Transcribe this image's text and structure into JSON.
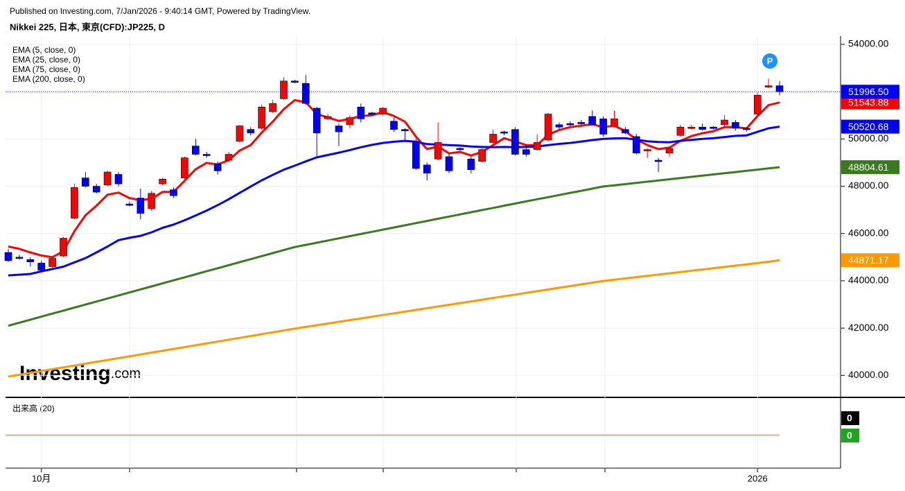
{
  "header": {
    "published": "Published on Investing.com, 7/Jan/2026 - 9:40:14 GMT, Powered by TradingView.",
    "symbol": "Nikkei 225, 日本, 東京(CFD):JP225, D"
  },
  "chart_data": {
    "type": "candlestick",
    "watermark": [
      "Investing",
      ".com"
    ],
    "marker": "P",
    "categories": [
      null,
      null,
      null,
      "10月",
      null,
      null,
      null,
      null,
      null,
      null,
      null,
      null,
      null,
      null,
      null,
      null,
      null,
      null,
      null,
      null,
      null,
      null,
      null,
      null,
      null,
      null,
      null,
      null,
      null,
      null,
      null,
      null,
      null,
      null,
      null,
      null,
      null,
      null,
      null,
      null,
      null,
      null,
      null,
      null,
      null,
      null,
      null,
      null,
      null,
      null,
      null,
      null,
      null,
      null,
      null,
      null,
      null,
      null,
      null,
      null,
      null,
      null,
      null,
      null,
      null,
      null,
      null,
      null,
      "2026",
      null,
      null
    ],
    "ylim": [
      39100,
      54350
    ],
    "yticks": [
      {
        "value": 40000,
        "label": "40000.00"
      },
      {
        "value": 42000,
        "label": "42000.00"
      },
      {
        "value": 44000,
        "label": "44000.00"
      },
      {
        "value": 46000,
        "label": "46000.00"
      },
      {
        "value": 48000,
        "label": "48000.00"
      },
      {
        "value": 50000,
        "label": "50000.00"
      },
      {
        "value": 52000,
        "label": "52000.00"
      },
      {
        "value": 54000,
        "label": "54000.00"
      }
    ],
    "grid": true,
    "candles": {
      "up_color": "#ff0000",
      "down_color": "#0000ff",
      "price_label": "51996.50",
      "open": [
        45200,
        45000,
        44900,
        44750,
        44600,
        45050,
        46650,
        48350,
        48000,
        48050,
        48500,
        47250,
        47500,
        47050,
        48100,
        47850,
        48350,
        49700,
        49350,
        48950,
        49100,
        49900,
        50400,
        50450,
        51150,
        51700,
        52450,
        52350,
        51300,
        50850,
        50550,
        50600,
        51350,
        51100,
        51050,
        50750,
        50400,
        49900,
        48900,
        49150,
        49250,
        49600,
        49150,
        49050,
        49850,
        50300,
        50400,
        49550,
        49550,
        49950,
        50600,
        50650,
        50700,
        50950,
        50850,
        50550,
        50400,
        50100,
        49500,
        49100,
        49400,
        50150,
        50450,
        50500,
        50500,
        50600,
        50700,
        50450,
        51050,
        52200,
        52250
      ],
      "high": [
        45350,
        45100,
        45000,
        44850,
        45000,
        45850,
        48100,
        48600,
        48100,
        48650,
        48600,
        47350,
        47900,
        47800,
        48350,
        47950,
        49250,
        50000,
        49450,
        49050,
        49450,
        50600,
        50500,
        51450,
        51650,
        52600,
        52500,
        52700,
        51350,
        51050,
        50650,
        51000,
        51500,
        51150,
        51350,
        50900,
        50450,
        50000,
        49000,
        50700,
        49350,
        49650,
        49250,
        49650,
        50400,
        50350,
        50500,
        49650,
        50200,
        51100,
        50700,
        50750,
        50800,
        51200,
        50950,
        51200,
        50500,
        50200,
        49600,
        49200,
        49700,
        50600,
        50600,
        50650,
        50550,
        51000,
        50800,
        50500,
        51950,
        52550,
        52450
      ],
      "low": [
        44800,
        44900,
        44600,
        44350,
        44550,
        45000,
        46600,
        47950,
        47700,
        48000,
        48000,
        47150,
        46600,
        46950,
        48050,
        47500,
        48300,
        49300,
        49200,
        48500,
        49050,
        49850,
        50150,
        50400,
        51100,
        51650,
        52350,
        51450,
        49200,
        50800,
        49700,
        50450,
        50700,
        51000,
        51000,
        50300,
        49900,
        48700,
        48250,
        49100,
        48550,
        49500,
        48550,
        49000,
        49800,
        50150,
        49300,
        49250,
        49500,
        49900,
        50400,
        50550,
        50600,
        50550,
        50100,
        50500,
        50200,
        49350,
        49200,
        48600,
        49250,
        50100,
        50400,
        50350,
        50400,
        50550,
        50350,
        50300,
        51000,
        52150,
        51850
      ],
      "close": [
        44850,
        44950,
        44800,
        44450,
        44950,
        45800,
        47950,
        48000,
        47750,
        48600,
        48100,
        47200,
        46850,
        47700,
        48300,
        47600,
        49200,
        49350,
        49300,
        48650,
        49350,
        50550,
        50250,
        51350,
        51500,
        52450,
        52400,
        51500,
        50250,
        50950,
        50300,
        50900,
        50850,
        51050,
        51300,
        50400,
        50350,
        48750,
        48550,
        49850,
        48650,
        49550,
        48700,
        49550,
        50200,
        50250,
        49350,
        49350,
        49850,
        51050,
        50500,
        50600,
        50650,
        50600,
        50200,
        50850,
        50250,
        49400,
        49550,
        49050,
        49600,
        50500,
        50500,
        50400,
        50450,
        50800,
        50450,
        50400,
        51850,
        52250,
        51996.5
      ]
    },
    "series": [
      {
        "name": "EMA (5, close, 0)",
        "color": "#ff0000",
        "price_label": "51543.88",
        "values": [
          45450,
          45350,
          45200,
          45070,
          45000,
          45250,
          46100,
          46770,
          47180,
          47640,
          47730,
          47500,
          47410,
          47470,
          47760,
          47760,
          48230,
          48720,
          48990,
          48920,
          49100,
          49510,
          49740,
          50270,
          50730,
          51260,
          51640,
          51550,
          51050,
          50910,
          50760,
          50850,
          50970,
          51000,
          51140,
          50970,
          50730,
          50090,
          49570,
          49680,
          49390,
          49450,
          49300,
          49450,
          49740,
          50030,
          49890,
          49740,
          49740,
          50180,
          50380,
          50500,
          50560,
          50620,
          50500,
          50560,
          50330,
          49970,
          49740,
          49570,
          49630,
          49920,
          50120,
          50240,
          50330,
          50500,
          50500,
          50440,
          50970,
          51430,
          51543.88
        ]
      },
      {
        "name": "EMA (25, close, 0)",
        "color": "#0000ff",
        "price_label": "50520.68",
        "values": [
          44230,
          44260,
          44290,
          44400,
          44500,
          44600,
          44780,
          44960,
          45200,
          45450,
          45720,
          45820,
          45900,
          46050,
          46240,
          46380,
          46560,
          46760,
          46970,
          47200,
          47450,
          47720,
          47990,
          48250,
          48480,
          48700,
          48870,
          49050,
          49220,
          49320,
          49420,
          49530,
          49650,
          49750,
          49830,
          49880,
          49920,
          49880,
          49780,
          49760,
          49740,
          49720,
          49680,
          49660,
          49650,
          49660,
          49650,
          49660,
          49680,
          49740,
          49790,
          49830,
          49890,
          49950,
          50000,
          50020,
          50030,
          49970,
          49900,
          49870,
          49860,
          49920,
          49960,
          50000,
          50030,
          50080,
          50130,
          50150,
          50300,
          50450,
          50520.68
        ]
      },
      {
        "name": "EMA (75, close, 0)",
        "color": "#3a7a1e",
        "price_label": "48804.61",
        "values": [
          42100,
          42228,
          42356,
          42484,
          42612,
          42740,
          42868,
          42996,
          43124,
          43252,
          43380,
          43508,
          43636,
          43764,
          43892,
          44020,
          44148,
          44276,
          44404,
          44532,
          44660,
          44788,
          44916,
          45044,
          45172,
          45300,
          45428,
          45520,
          45612,
          45704,
          45796,
          45888,
          45980,
          46072,
          46164,
          46256,
          46348,
          46440,
          46532,
          46624,
          46716,
          46808,
          46900,
          46992,
          47084,
          47176,
          47268,
          47358,
          47448,
          47538,
          47628,
          47718,
          47808,
          47898,
          47988,
          48039,
          48090,
          48141,
          48192,
          48243,
          48294,
          48345,
          48396,
          48447,
          48498,
          48549,
          48600,
          48651,
          48702,
          48753,
          48804.61
        ]
      },
      {
        "name": "EMA (200, close, 0)",
        "color": "#ff9900",
        "price_label": "44871.17",
        "values": [
          39950,
          40028,
          40106,
          40184,
          40262,
          40340,
          40418,
          40496,
          40574,
          40652,
          40730,
          40808,
          40886,
          40964,
          41042,
          41120,
          41198,
          41276,
          41354,
          41432,
          41510,
          41588,
          41666,
          41744,
          41822,
          41900,
          41978,
          42050,
          42122,
          42194,
          42266,
          42338,
          42410,
          42482,
          42554,
          42626,
          42698,
          42770,
          42842,
          42914,
          42986,
          43058,
          43130,
          43202,
          43274,
          43346,
          43418,
          43490,
          43562,
          43634,
          43706,
          43778,
          43850,
          43922,
          43994,
          44048,
          44102,
          44156,
          44210,
          44264,
          44318,
          44372,
          44426,
          44480,
          44534,
          44588,
          44642,
          44696,
          44750,
          44804,
          44871.17
        ]
      }
    ],
    "volume": {
      "title": "出来高 (20)",
      "values": [
        0,
        0
      ],
      "colors": [
        "#000000",
        "#1fa51f"
      ]
    }
  }
}
